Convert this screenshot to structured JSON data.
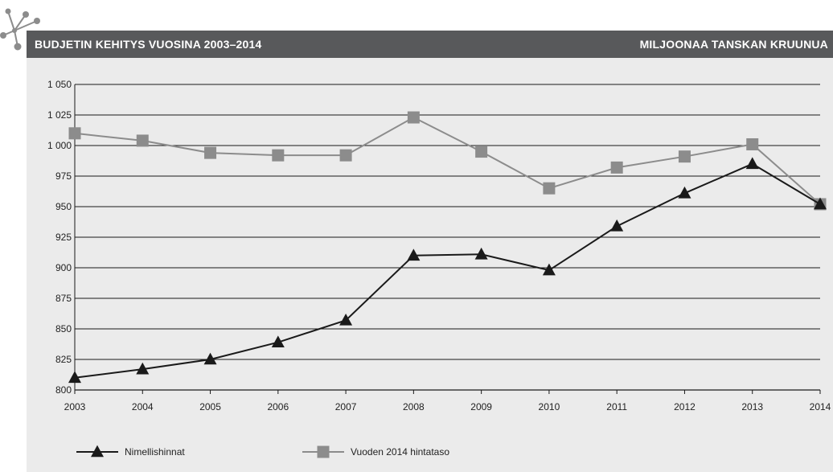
{
  "header": {
    "title": "BUDJETIN KEHITYS VUOSINA 2003–2014",
    "unit": "MILJOONAA TANSKAN KRUUNUA"
  },
  "colors": {
    "header_bg": "#58595b",
    "panel_bg": "#ebebeb",
    "series_nominal": "#1a1a1a",
    "series_real": "#8c8c8c"
  },
  "chart_data": {
    "type": "line",
    "title": "BUDJETIN KEHITYS VUOSINA 2003–2014",
    "ylabel": "MILJOONAA TANSKAN KRUUNUA",
    "xlabel": "",
    "categories": [
      "2003",
      "2004",
      "2005",
      "2006",
      "2007",
      "2008",
      "2009",
      "2010",
      "2011",
      "2012",
      "2013",
      "2014"
    ],
    "ylim": [
      800,
      1050
    ],
    "yticks": [
      800,
      825,
      850,
      875,
      900,
      925,
      950,
      975,
      1000,
      1025,
      1050
    ],
    "ytick_labels": [
      "800",
      "825",
      "850",
      "875",
      "900",
      "925",
      "950",
      "975",
      "1 000",
      "1 025",
      "1 050"
    ],
    "grid": "horizontal",
    "legend_position": "bottom",
    "series": [
      {
        "name": "Nimellishinnat",
        "marker": "triangle",
        "values": [
          810,
          817,
          825,
          839,
          857,
          910,
          911,
          898,
          934,
          961,
          985,
          952
        ]
      },
      {
        "name": "Vuoden 2014 hintataso",
        "marker": "square",
        "values": [
          1010,
          1004,
          994,
          992,
          992,
          1023,
          995,
          965,
          982,
          991,
          1001,
          952
        ]
      }
    ]
  }
}
